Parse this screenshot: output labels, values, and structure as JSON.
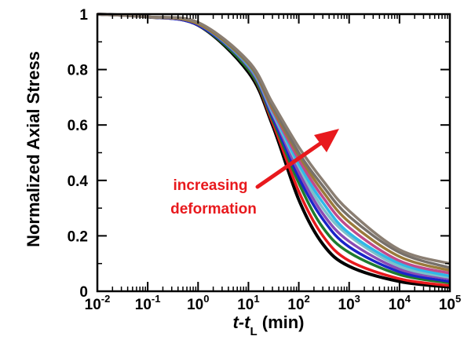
{
  "chart_data": {
    "type": "line",
    "title": "",
    "xlabel": {
      "italic": "t-t",
      "subscript": "L",
      "rest": " (min)"
    },
    "ylabel": "Normalized Axial Stress",
    "x_scale": "log",
    "xlim": [
      0.01,
      100000
    ],
    "ylim": [
      0,
      1
    ],
    "x_ticks": [
      {
        "base": "10",
        "exp": "-2"
      },
      {
        "base": "10",
        "exp": "-1"
      },
      {
        "base": "10",
        "exp": "0"
      },
      {
        "base": "10",
        "exp": "1"
      },
      {
        "base": "10",
        "exp": "2"
      },
      {
        "base": "10",
        "exp": "3"
      },
      {
        "base": "10",
        "exp": "4"
      },
      {
        "base": "10",
        "exp": "5"
      }
    ],
    "y_ticks": [
      "0",
      "0.2",
      "0.4",
      "0.6",
      "0.8",
      "1"
    ],
    "grid": false,
    "legend": "none",
    "annotation": {
      "lines": [
        "increasing",
        "deformation"
      ],
      "color": "#e8191d",
      "arrow": "increasing deformation direction"
    },
    "series": [
      {
        "color": "#000000",
        "values": [
          [
            0.01,
            1.0
          ],
          [
            0.1,
            0.99
          ],
          [
            1,
            0.96
          ],
          [
            10,
            0.79
          ],
          [
            30,
            0.6
          ],
          [
            100,
            0.33
          ],
          [
            300,
            0.17
          ],
          [
            1000,
            0.09
          ],
          [
            10000,
            0.035
          ],
          [
            100000,
            0.015
          ]
        ]
      },
      {
        "color": "#e8191d",
        "values": [
          [
            0.01,
            1.0
          ],
          [
            0.1,
            0.99
          ],
          [
            1,
            0.96
          ],
          [
            10,
            0.8
          ],
          [
            30,
            0.61
          ],
          [
            100,
            0.36
          ],
          [
            300,
            0.2
          ],
          [
            1000,
            0.11
          ],
          [
            10000,
            0.045
          ],
          [
            100000,
            0.02
          ]
        ]
      },
      {
        "color": "#1e7b2e",
        "values": [
          [
            0.01,
            1.0
          ],
          [
            0.1,
            0.99
          ],
          [
            1,
            0.96
          ],
          [
            10,
            0.8
          ],
          [
            30,
            0.62
          ],
          [
            100,
            0.39
          ],
          [
            300,
            0.23
          ],
          [
            1000,
            0.14
          ],
          [
            10000,
            0.06
          ],
          [
            100000,
            0.03
          ]
        ]
      },
      {
        "color": "#1a24c9",
        "values": [
          [
            0.01,
            1.0
          ],
          [
            0.1,
            0.99
          ],
          [
            1,
            0.96
          ],
          [
            10,
            0.81
          ],
          [
            30,
            0.63
          ],
          [
            100,
            0.41
          ],
          [
            300,
            0.26
          ],
          [
            1000,
            0.16
          ],
          [
            10000,
            0.07
          ],
          [
            100000,
            0.035
          ]
        ]
      },
      {
        "color": "#8a4bb3",
        "values": [
          [
            0.01,
            1.0
          ],
          [
            0.1,
            0.99
          ],
          [
            1,
            0.965
          ],
          [
            10,
            0.81
          ],
          [
            30,
            0.64
          ],
          [
            100,
            0.43
          ],
          [
            300,
            0.28
          ],
          [
            1000,
            0.18
          ],
          [
            10000,
            0.08
          ],
          [
            100000,
            0.045
          ]
        ]
      },
      {
        "color": "#7ec0c9",
        "values": [
          [
            0.01,
            1.0
          ],
          [
            0.1,
            0.99
          ],
          [
            1,
            0.965
          ],
          [
            10,
            0.815
          ],
          [
            30,
            0.645
          ],
          [
            100,
            0.45
          ],
          [
            300,
            0.3
          ],
          [
            1000,
            0.2
          ],
          [
            10000,
            0.09
          ],
          [
            100000,
            0.05
          ]
        ]
      },
      {
        "color": "#2fb8e8",
        "values": [
          [
            0.01,
            1.0
          ],
          [
            0.1,
            0.99
          ],
          [
            1,
            0.965
          ],
          [
            10,
            0.815
          ],
          [
            30,
            0.65
          ],
          [
            100,
            0.46
          ],
          [
            300,
            0.32
          ],
          [
            1000,
            0.21
          ],
          [
            10000,
            0.1
          ],
          [
            100000,
            0.055
          ]
        ]
      },
      {
        "color": "#c04a8a",
        "values": [
          [
            0.01,
            1.0
          ],
          [
            0.1,
            0.99
          ],
          [
            1,
            0.965
          ],
          [
            10,
            0.82
          ],
          [
            30,
            0.655
          ],
          [
            100,
            0.475
          ],
          [
            300,
            0.34
          ],
          [
            1000,
            0.23
          ],
          [
            10000,
            0.11
          ],
          [
            100000,
            0.065
          ]
        ]
      },
      {
        "color": "#9a7a3a",
        "values": [
          [
            0.01,
            1.0
          ],
          [
            0.1,
            0.99
          ],
          [
            1,
            0.965
          ],
          [
            10,
            0.82
          ],
          [
            30,
            0.66
          ],
          [
            100,
            0.49
          ],
          [
            300,
            0.36
          ],
          [
            1000,
            0.25
          ],
          [
            10000,
            0.125
          ],
          [
            100000,
            0.075
          ]
        ]
      },
      {
        "color": "#77706a",
        "values": [
          [
            0.01,
            1.0
          ],
          [
            0.1,
            0.99
          ],
          [
            1,
            0.97
          ],
          [
            10,
            0.825
          ],
          [
            30,
            0.67
          ],
          [
            100,
            0.5
          ],
          [
            300,
            0.38
          ],
          [
            1000,
            0.27
          ],
          [
            10000,
            0.14
          ],
          [
            100000,
            0.085
          ]
        ]
      },
      {
        "color": "#8a7e72",
        "values": [
          [
            0.01,
            1.0
          ],
          [
            0.1,
            0.99
          ],
          [
            1,
            0.97
          ],
          [
            10,
            0.83
          ],
          [
            30,
            0.68
          ],
          [
            100,
            0.52
          ],
          [
            300,
            0.4
          ],
          [
            1000,
            0.29
          ],
          [
            10000,
            0.15
          ],
          [
            100000,
            0.1
          ]
        ]
      }
    ]
  }
}
